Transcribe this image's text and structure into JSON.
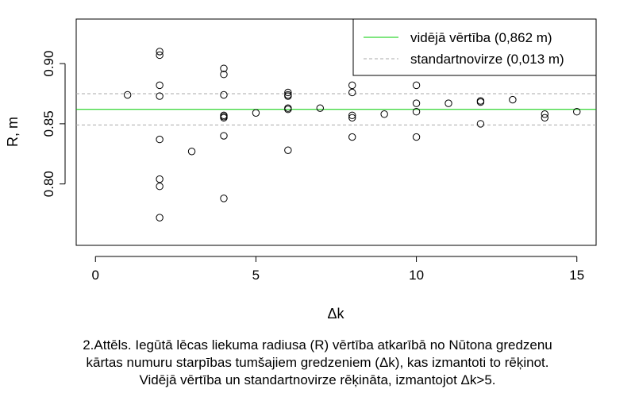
{
  "chart_data": {
    "type": "scatter",
    "xlabel": "Δk",
    "ylabel": "R, m",
    "xlim": [
      -0.6,
      15.6
    ],
    "ylim": [
      0.749,
      0.937
    ],
    "xticks": [
      0,
      5,
      10,
      15
    ],
    "yticks": [
      0.8,
      0.85,
      0.9
    ],
    "x_tick_labels": [
      "0",
      "5",
      "10",
      "15"
    ],
    "y_tick_labels": [
      "0.80",
      "0.85",
      "0.90"
    ],
    "grid": false,
    "legend_position": "top-right",
    "points": {
      "x": [
        1,
        2,
        2,
        2,
        2,
        2,
        2,
        2,
        2,
        3,
        4,
        4,
        4,
        4,
        4,
        4,
        4,
        4,
        5,
        6,
        6,
        6,
        6,
        6,
        6,
        7,
        8,
        8,
        8,
        8,
        8,
        9,
        10,
        10,
        10,
        10,
        11,
        12,
        12,
        12,
        13,
        14,
        14,
        15
      ],
      "y": [
        0.874,
        0.91,
        0.907,
        0.882,
        0.873,
        0.837,
        0.804,
        0.798,
        0.772,
        0.827,
        0.896,
        0.891,
        0.874,
        0.857,
        0.855,
        0.84,
        0.788,
        0.856,
        0.859,
        0.876,
        0.873,
        0.863,
        0.862,
        0.828,
        0.874,
        0.863,
        0.882,
        0.876,
        0.857,
        0.855,
        0.839,
        0.858,
        0.882,
        0.867,
        0.86,
        0.839,
        0.867,
        0.869,
        0.868,
        0.85,
        0.87,
        0.858,
        0.855,
        0.86
      ]
    },
    "mean_line": {
      "y": 0.862,
      "color": "#00cc00"
    },
    "sd_lines": {
      "y": [
        0.875,
        0.849
      ],
      "color": "#aaaaaa"
    },
    "legend": [
      {
        "label": "vidējā vērtība (0,862 m)",
        "style": "solid",
        "color": "#00cc00"
      },
      {
        "label": "standartnovirze (0,013 m)",
        "style": "dashed",
        "color": "#aaaaaa"
      }
    ]
  },
  "caption": {
    "line1": "2.Attēls. Iegūtā lēcas liekuma radiusa (R) vērtība atkarībā no Nūtona gredzenu",
    "line2": "kārtas numuru starpības tumšajiem gredzeniem (Δk), kas izmantoti to rēķinot.",
    "line3": "Vidējā vērtība un standartnovirze rēķināta, izmantojot Δk>5."
  }
}
